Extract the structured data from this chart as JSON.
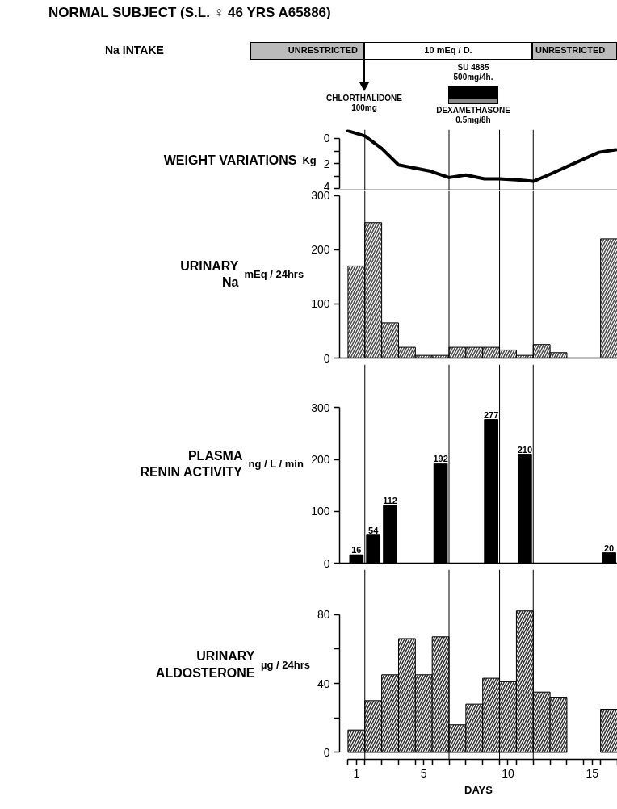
{
  "chart_data": [
    {
      "type": "other",
      "title": "NORMAL SUBJECT (S.L. ♀ 46 YRS A65886)",
      "annotations": [
        "Na INTAKE",
        "UNRESTRICTED",
        "10 mEq / D.",
        "UNRESTRICTED",
        "CHLORTHALIDONE\n100mg",
        "SU 4885\n500mg/4h.",
        "DEXAMETHASONE\n0.5mg/8h"
      ]
    },
    {
      "type": "line",
      "title": "WEIGHT VARIATIONS",
      "ylabel": "Kg",
      "color": "#000000",
      "tick_labels": "y",
      "x": [
        0.5,
        1.5,
        2.5,
        3.5,
        5.4,
        6.5,
        7.5,
        8.6,
        9.5,
        10.7,
        11.5,
        12.4,
        13.9,
        15.4,
        16.4
      ],
      "values": [
        -0.6,
        -0.2,
        0.8,
        2.1,
        2.6,
        3.1,
        2.9,
        3.2,
        3.2,
        3.3,
        3.4,
        2.9,
        2.0,
        1.1,
        0.9
      ],
      "xlim": [
        0,
        16.5
      ],
      "ylim": [
        4.1,
        -0.7
      ],
      "yticks": [
        0,
        {
          "value": 1,
          "label": null
        },
        2,
        {
          "value": 3,
          "label": null
        },
        4
      ],
      "ref_lines": [
        {
          "axis": "x",
          "value": 1.5,
          "color": "#000000"
        },
        {
          "axis": "x",
          "value": 6.5,
          "color": "#000000"
        },
        {
          "axis": "x",
          "value": 9.5,
          "color": "#000000"
        },
        {
          "axis": "x",
          "value": 11.5,
          "color": "#000000"
        }
      ]
    },
    {
      "type": "histogram",
      "title": "URINARY",
      "subtitle": "Na",
      "ylabel": "mEq / 24hrs",
      "color": "#4d4d4d",
      "tick_labels": "y",
      "bins": [
        0.5,
        1.5,
        2.5,
        3.5,
        4.5,
        5.5,
        6.5,
        7.5,
        8.5,
        9.5,
        10.5,
        11.5,
        12.5,
        13.5,
        14.5,
        15.5,
        16.5
      ],
      "values": [
        170,
        250,
        65,
        20,
        5,
        5,
        20,
        20,
        20,
        15,
        5,
        25,
        10,
        null,
        null,
        220
      ],
      "xlim": [
        0,
        16.5
      ],
      "ylim": [
        0,
        310
      ],
      "yticks": [
        0,
        100,
        200,
        300
      ],
      "ref_lines": [
        {
          "axis": "x",
          "value": 1.5,
          "color": "#000000"
        },
        {
          "axis": "x",
          "value": 6.5,
          "color": "#000000"
        },
        {
          "axis": "x",
          "value": 9.5,
          "color": "#000000"
        },
        {
          "axis": "x",
          "value": 11.5,
          "color": "#000000"
        }
      ]
    },
    {
      "type": "bar",
      "title": "PLASMA",
      "subtitle": "RENIN ACTIVITY",
      "ylabel": "ng / L / min",
      "color": "#000000",
      "tick_labels": "y",
      "data_labels": true,
      "x": [
        1,
        2,
        3,
        6,
        9,
        11,
        16
      ],
      "values": [
        16,
        54,
        112,
        192,
        277,
        210,
        20
      ],
      "xlim": [
        0,
        16.5
      ],
      "ylim": [
        0,
        383
      ],
      "yticks": [
        0,
        100,
        200,
        300
      ],
      "ref_lines": [
        {
          "axis": "x",
          "value": 1.5,
          "color": "#000000"
        },
        {
          "axis": "x",
          "value": 6.5,
          "color": "#000000"
        },
        {
          "axis": "x",
          "value": 9.5,
          "color": "#000000"
        },
        {
          "axis": "x",
          "value": 11.5,
          "color": "#000000"
        }
      ]
    },
    {
      "type": "histogram",
      "title": "URINARY",
      "subtitle": "ALDOSTERONE",
      "ylabel": "µg / 24hrs",
      "xlabel": "DAYS",
      "color": "#333333",
      "bins": [
        0.5,
        1.5,
        2.5,
        3.5,
        4.5,
        5.5,
        6.5,
        7.5,
        8.5,
        9.5,
        10.5,
        11.5,
        12.5,
        13.5,
        14.5,
        15.5,
        16.5
      ],
      "values": [
        13,
        30,
        45,
        66,
        45,
        67,
        16,
        28,
        43,
        41,
        82,
        35,
        32,
        null,
        null,
        25
      ],
      "xlim": [
        0,
        16.5
      ],
      "ylim": [
        -4,
        106
      ],
      "yticks": [
        0,
        {
          "value": 20,
          "label": null
        },
        40,
        {
          "value": 60,
          "label": null
        },
        80
      ],
      "xticks": [
        {
          "value": 0.5,
          "label": null
        },
        1,
        {
          "value": 1.5,
          "label": null
        },
        {
          "value": 2.5,
          "label": null
        },
        {
          "value": 3.5,
          "label": null
        },
        {
          "value": 4.5,
          "label": null
        },
        5,
        {
          "value": 5.5,
          "label": null
        },
        {
          "value": 6.5,
          "label": null
        },
        {
          "value": 7.5,
          "label": null
        },
        {
          "value": 8.5,
          "label": null
        },
        {
          "value": 9.5,
          "label": null
        },
        10,
        {
          "value": 10.5,
          "label": null
        },
        {
          "value": 11.5,
          "label": null
        },
        {
          "value": 12.5,
          "label": null
        },
        {
          "value": 13.5,
          "label": null
        },
        {
          "value": 14.5,
          "label": null
        },
        15,
        {
          "value": 15.5,
          "label": null
        },
        {
          "value": 16.5,
          "label": null
        }
      ],
      "ref_lines": [
        {
          "axis": "x",
          "value": 1.5,
          "color": "#000000"
        },
        {
          "axis": "x",
          "value": 6.5,
          "color": "#000000"
        },
        {
          "axis": "x",
          "value": 9.5,
          "color": "#000000"
        },
        {
          "axis": "x",
          "value": 11.5,
          "color": "#000000"
        }
      ]
    }
  ]
}
